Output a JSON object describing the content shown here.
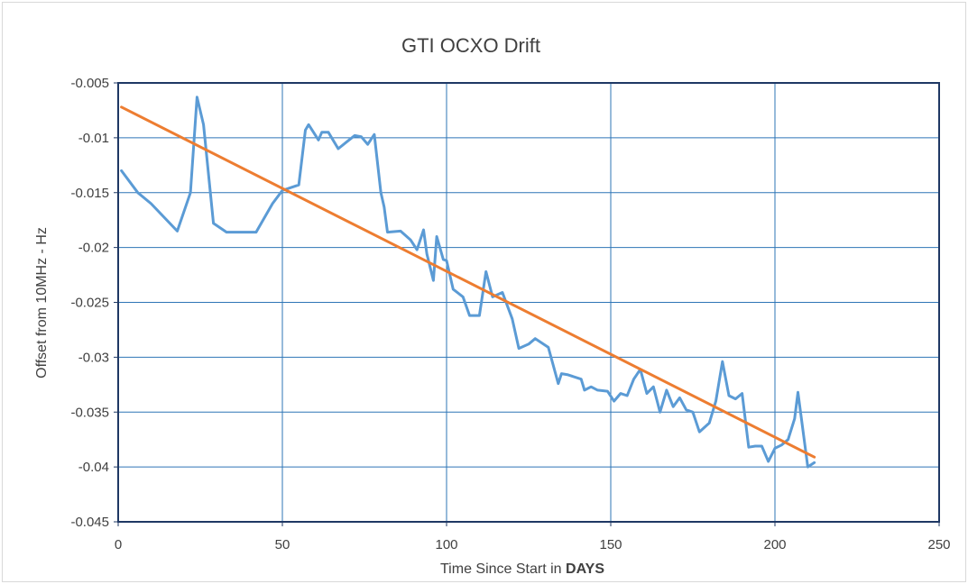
{
  "chart_data": {
    "type": "line",
    "title": "GTI OCXO Drift",
    "xlabel_prefix": "Time Since Start in ",
    "xlabel_bold": "DAYS",
    "ylabel": "Offset from 10MHz - Hz",
    "xlim": [
      0,
      250
    ],
    "ylim": [
      -0.045,
      -0.005
    ],
    "x_ticks": [
      0,
      50,
      100,
      150,
      200,
      250
    ],
    "x_tick_labels": [
      "0",
      "50",
      "100",
      "150",
      "200",
      "250"
    ],
    "y_ticks": [
      -0.005,
      -0.01,
      -0.015,
      -0.02,
      -0.025,
      -0.03,
      -0.035,
      -0.04,
      -0.045
    ],
    "y_tick_labels": [
      "-0.005",
      "-0.01",
      "-0.015",
      "-0.02",
      "-0.025",
      "-0.03",
      "-0.035",
      "-0.04",
      "-0.045"
    ],
    "grid": true,
    "colors": {
      "data": "#5b9bd5",
      "trend": "#ed7d31",
      "axis": "#1f3864",
      "grid": "#2e75b6"
    },
    "series": [
      {
        "role": "data",
        "x": [
          1,
          6,
          10,
          18,
          22,
          24,
          26,
          29,
          33,
          37,
          42,
          47,
          50,
          55,
          57,
          58,
          61,
          62,
          64,
          67,
          72,
          74,
          76,
          78,
          80,
          81,
          82,
          86,
          89,
          91,
          93,
          94,
          96,
          97,
          99,
          100,
          102,
          105,
          107,
          110,
          112,
          114,
          117,
          120,
          122,
          125,
          127,
          131,
          134,
          135,
          137,
          141,
          142,
          144,
          146,
          149,
          151,
          153,
          155,
          157,
          159,
          161,
          163,
          165,
          167,
          169,
          171,
          173,
          175,
          177,
          180,
          182,
          184,
          186,
          188,
          190,
          192,
          194,
          196,
          198,
          200,
          202,
          204,
          206,
          207,
          210,
          212
        ],
        "y": [
          -0.013,
          -0.015,
          -0.016,
          -0.0185,
          -0.015,
          -0.0063,
          -0.0088,
          -0.0178,
          -0.0186,
          -0.0186,
          -0.0186,
          -0.016,
          -0.0148,
          -0.0143,
          -0.0093,
          -0.0088,
          -0.0102,
          -0.0095,
          -0.0095,
          -0.011,
          -0.0098,
          -0.0099,
          -0.0106,
          -0.0097,
          -0.015,
          -0.0163,
          -0.0186,
          -0.0185,
          -0.0193,
          -0.0202,
          -0.0184,
          -0.0206,
          -0.023,
          -0.019,
          -0.0211,
          -0.0212,
          -0.0238,
          -0.0245,
          -0.0262,
          -0.0262,
          -0.0222,
          -0.0245,
          -0.0241,
          -0.0265,
          -0.0292,
          -0.0288,
          -0.0283,
          -0.0291,
          -0.0324,
          -0.0315,
          -0.0316,
          -0.032,
          -0.033,
          -0.0327,
          -0.033,
          -0.0331,
          -0.034,
          -0.0333,
          -0.0335,
          -0.032,
          -0.0311,
          -0.0333,
          -0.0327,
          -0.035,
          -0.033,
          -0.0345,
          -0.0337,
          -0.0348,
          -0.035,
          -0.0368,
          -0.036,
          -0.034,
          -0.0304,
          -0.0335,
          -0.0338,
          -0.0333,
          -0.0382,
          -0.0381,
          -0.0381,
          -0.0395,
          -0.0383,
          -0.038,
          -0.0375,
          -0.0356,
          -0.0332,
          -0.04,
          -0.0396
        ]
      },
      {
        "role": "trend",
        "x": [
          1,
          212
        ],
        "y": [
          -0.0072,
          -0.0391
        ]
      }
    ]
  }
}
